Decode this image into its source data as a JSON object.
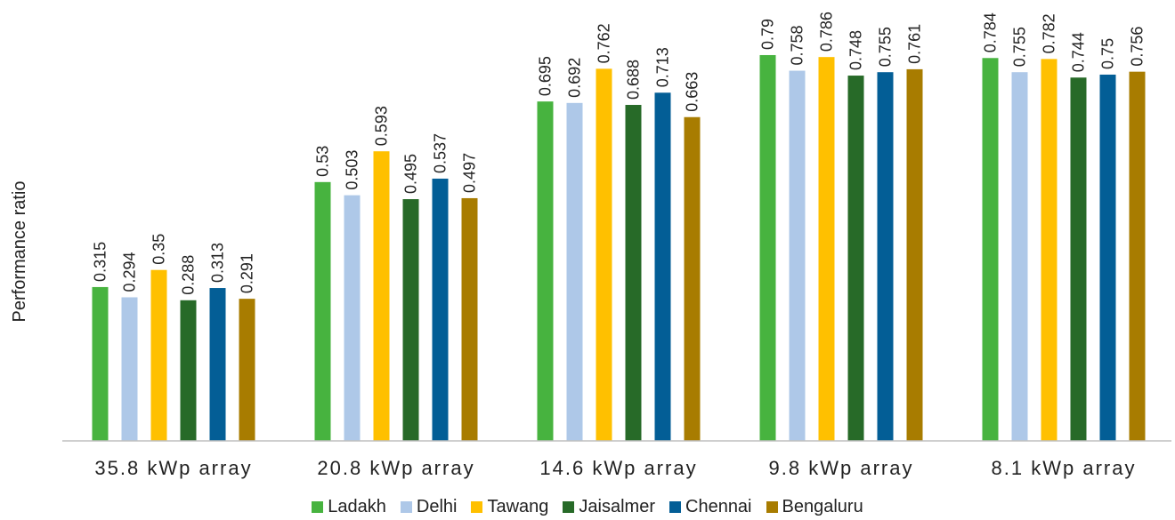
{
  "chart_data": {
    "type": "bar",
    "ylabel": "Performance ratio",
    "xlabel": "",
    "ylim": [
      0,
      0.83
    ],
    "grid": false,
    "legend_position": "bottom",
    "categories": [
      "35.8 kWp array",
      "20.8 kWp array",
      "14.6 kWp array",
      "9.8 kWp array",
      "8.1 kWp array"
    ],
    "series": [
      {
        "name": "Ladakh",
        "color": "#47b33f",
        "values": [
          0.315,
          0.53,
          0.695,
          0.79,
          0.784
        ]
      },
      {
        "name": "Delhi",
        "color": "#aec8e8",
        "values": [
          0.294,
          0.503,
          0.692,
          0.758,
          0.755
        ]
      },
      {
        "name": "Tawang",
        "color": "#ffc000",
        "values": [
          0.35,
          0.593,
          0.762,
          0.786,
          0.782
        ]
      },
      {
        "name": "Jaisalmer",
        "color": "#276a28",
        "values": [
          0.288,
          0.495,
          0.688,
          0.748,
          0.744
        ]
      },
      {
        "name": "Chennai",
        "color": "#035e96",
        "values": [
          0.313,
          0.537,
          0.713,
          0.755,
          0.75
        ]
      },
      {
        "name": "Bengaluru",
        "color": "#a87c00",
        "values": [
          0.291,
          0.497,
          0.663,
          0.761,
          0.756
        ]
      }
    ]
  }
}
